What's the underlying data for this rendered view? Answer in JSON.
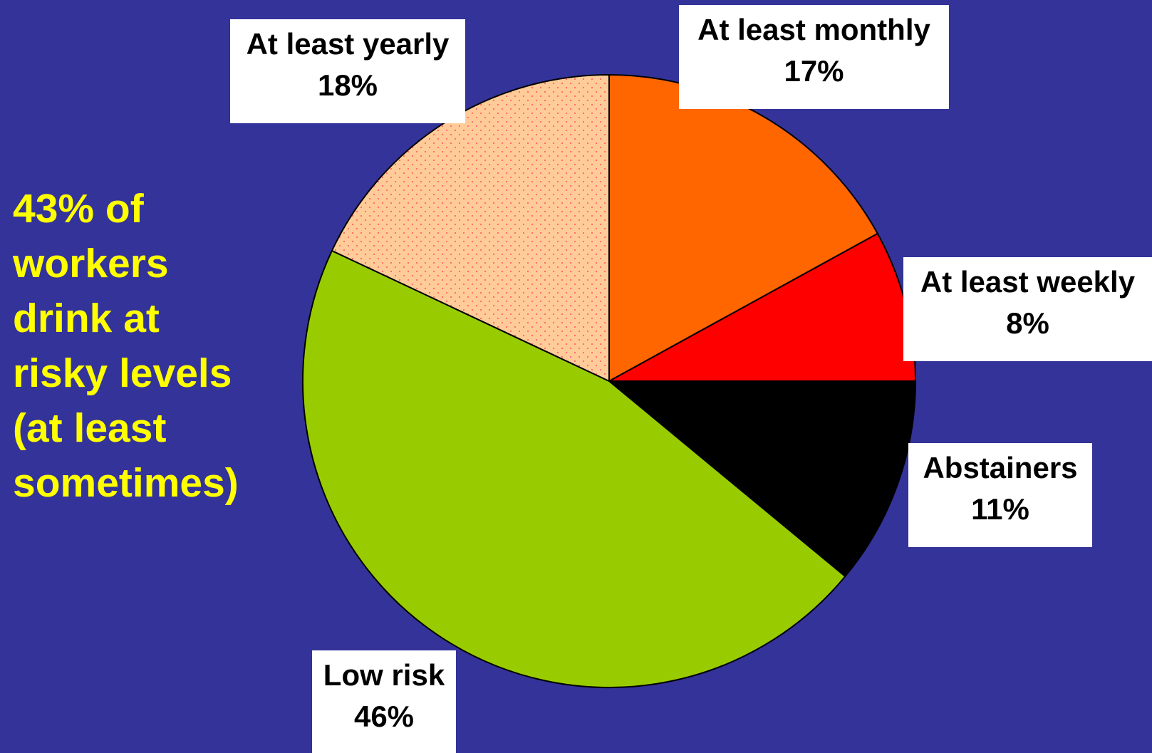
{
  "annotation": {
    "lines": [
      "43% of",
      "workers",
      "drink at",
      "risky levels",
      "(at least",
      "sometimes)"
    ],
    "color": "#FFFF00"
  },
  "background_color": "#333399",
  "chart_data": {
    "type": "pie",
    "title": "",
    "start": "12 o'clock",
    "direction": "clockwise",
    "slices": [
      {
        "label": "At least monthly",
        "value": 17,
        "value_label": "17%",
        "color": "#FF6600",
        "pattern": "solid"
      },
      {
        "label": "At least weekly",
        "value": 8,
        "value_label": "8%",
        "color": "#FF0000",
        "pattern": "solid"
      },
      {
        "label": "Abstainers",
        "value": 11,
        "value_label": "11%",
        "color": "#000000",
        "pattern": "solid"
      },
      {
        "label": "Low risk",
        "value": 46,
        "value_label": "46%",
        "color": "#99CC00",
        "pattern": "solid"
      },
      {
        "label": "At least yearly",
        "value": 18,
        "value_label": "18%",
        "color": "#FFCC99",
        "pattern": "dotted",
        "dot_color": "#FF6666"
      }
    ]
  }
}
